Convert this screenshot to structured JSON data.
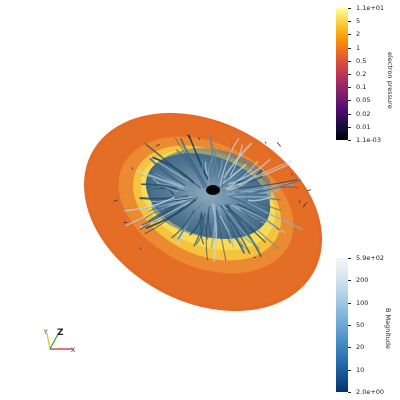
{
  "colorbars": {
    "pressure": {
      "title": "electron pressure",
      "ticks": [
        "1.1e+01",
        "5",
        "2",
        "1",
        "0.5",
        "0.2",
        "0.1",
        "0.05",
        "0.02",
        "0.01",
        "1.1e-03"
      ],
      "colors": [
        "#000004",
        "#1b0c41",
        "#4a0c6b",
        "#781c6d",
        "#a52c60",
        "#cf4446",
        "#ed6925",
        "#fb9b06",
        "#f7d13d",
        "#fcffa4"
      ]
    },
    "bmag": {
      "title": "B Magnitude",
      "ticks": [
        "5.9e+02",
        "200",
        "100",
        "50",
        "20",
        "10",
        "2.0e+00"
      ],
      "colors": [
        "#08306b",
        "#1b5fa0",
        "#3d85c0",
        "#6ba7d4",
        "#a0c6e4",
        "#d2e2f0",
        "#f3f6fa"
      ]
    }
  },
  "axes": {
    "x_label": "X",
    "y_label": "Y",
    "z_label": "Z"
  }
}
